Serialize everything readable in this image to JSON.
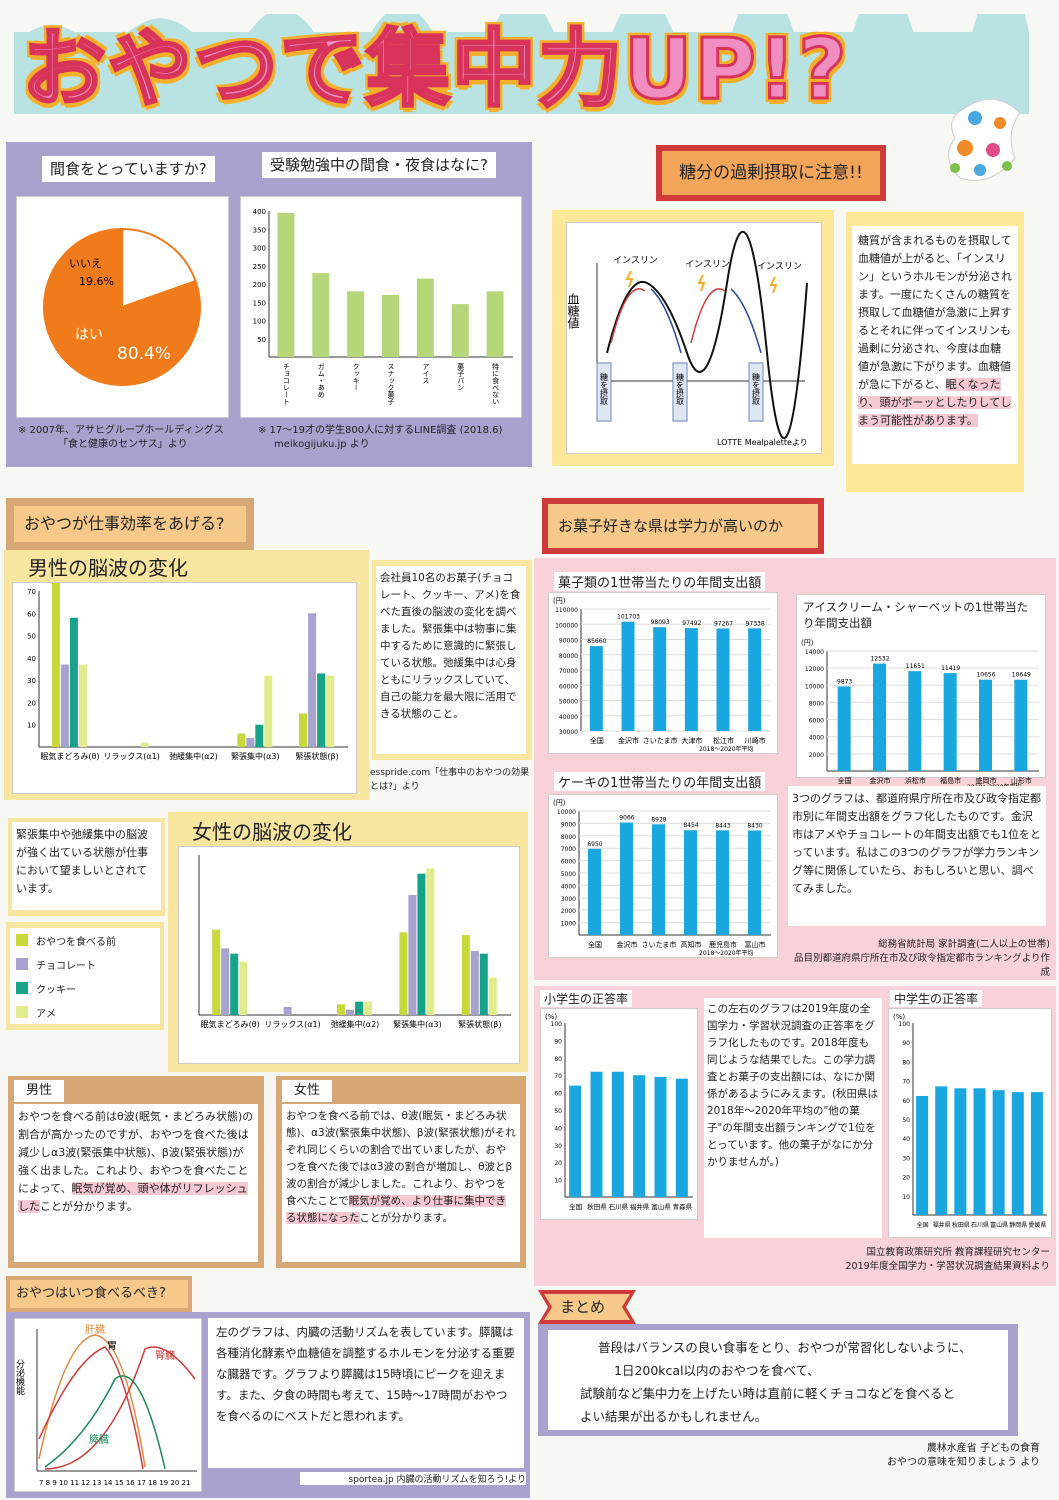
{
  "title": "おやつで集中力UP!?",
  "s1": {
    "pie_title": "間食をとっていますか?",
    "pie_labels": {
      "no": "いいえ",
      "no_pct": "19.6%",
      "yes": "はい",
      "yes_pct": "80.4%"
    },
    "pie_src1": "※ 2007年、アサヒグループホールディングス",
    "pie_src2": "「食と健康のセンサス」より",
    "bar_title": "受験勉強中の間食・夜食はなに?",
    "bar_src1": "※ 17〜19才の学生800人に対するLINE調査 (2018.6)",
    "bar_src2": "meikogijuku.jp より"
  },
  "sugar": {
    "title": "糖分の過剰摂取に注意!!",
    "ylabel": "血糖値",
    "insulin": "インスリン",
    "intake": "糖を摂取",
    "src": "LOTTE  Mealpaletteより",
    "note": "糖質が含まれるものを摂取して血糖値が上がると、「インスリン」というホルモンが分泌されます。一度にたくさんの糖質を摂取して血糖値が急激に上昇するとそれに伴ってインスリンも過剰に分泌され、今度は血糖値が急激に下がります。血糖値が急に下がると、",
    "note_hl": "眠くなったり、頭がボーッとしたりしてしまう可能性があります。"
  },
  "work": {
    "tag": "おやつが仕事効率をあげる?",
    "male_title": "男性の脳波の変化",
    "female_title": "女性の脳波の変化",
    "cats": [
      "眠気まどろみ(θ)",
      "リラックス(α1)",
      "弛緩集中(α2)",
      "緊張集中(α3)",
      "緊張状態(β)"
    ],
    "desc": "会社員10名のお菓子(チョコレート、クッキー、アメ)を食べた直後の脳波の変化を調べました。緊張集中は物事に集中するために意識的に緊張している状態。弛緩集中は心身ともにリラックスしていて、自己の能力を最大限に活用できる状態のこと。",
    "src": "esspride.com「仕事中のおやつの効果とは?」より",
    "good_note": "緊張集中や弛緩集中の脳波が強く出ている状態が仕事において望ましいとされています。",
    "legend": [
      "おやつを食べる前",
      "チョコレート",
      "クッキー",
      "アメ"
    ],
    "legend_colors": [
      "#c6d83a",
      "#a8a2cf",
      "#17a38a",
      "#e2ec8c"
    ],
    "male_tag": "男性",
    "male_text": "おやつを食べる前はθ波(眠気・まどろみ状態)の割合が高かったのですが、おやつを食べた後は減少しα3波(緊張集中状態)、β波(緊張状態)が強く出ました。これより、おやつを食べたことによって、",
    "male_hl": "眠気が覚め、頭や体がリフレッシュした",
    "male_end": "ことが分かります。",
    "female_tag": "女性",
    "female_text": "おやつを食べる前では、θ波(眠気・まどろみ状態)、α3波(緊張集中状態)、β波(緊張状態)がそれぞれ同じくらいの割合で出ていましたが、おやつを食べた後ではα3波の割合が増加し、θ波とβ波の割合が減少しました。これより、おやつを食べたことで",
    "female_hl": "眠気が覚め、より仕事に集中できる状態になった",
    "female_end": "ことが分かります。"
  },
  "sweets": {
    "tag": "お菓子好きな県は学力が高いのか",
    "c1_title": "菓子類の1世帯当たりの年間支出額",
    "c2_title": "アイスクリーム・シャーベットの1世帯当たり年間支出額",
    "c3_title": "ケーキの1世帯当たりの年間支出額",
    "unit": "(円)",
    "period": "2018〜2020年平均",
    "note": "3つのグラフは、都道府県庁所在市及び政令指定都市別に年間支出額をグラフ化したものです。金沢市はアメやチョコレートの年間支出額でも1位をとっています。私はこの3つのグラフが学力ランキング等に関係していたら、おもしろいと思い、調べてみました。",
    "src1": "総務省統計局 家計調査(二人以上の世帯)",
    "src2": "品目別都道府県庁所在市及び政令指定都市ランキングより作成"
  },
  "score": {
    "elem_title": "小学生の正答率",
    "mid_title": "中学生の正答率",
    "unit": "(%)",
    "note": "この左右のグラフは2019年度の全国学力・学習状況調査の正答率をグラフ化したものです。2018年度も同じような結果でした。この学力調査とお菓子の支出額には、なにか関係があるようにみえます。(秋田県は2018年〜2020年平均の\"他の菓子\"の年間支出額ランキングで1位をとっています。他の菓子がなにか分かりませんが。)",
    "src1": "国立教育政策研究所 教育課程研究センター",
    "src2": "2019年度全国学力・学習状況調査結果資料より"
  },
  "when": {
    "tag": "おやつはいつ食べるべき?",
    "ylabel": "分泌機能",
    "organs": {
      "liver": "肝臓",
      "stomach": "胃",
      "kidney": "腎臓",
      "pancreas": "膵臓"
    },
    "xticks": "7 8 9 10 11 12 13 14 15 16 17 18 19 20 21",
    "text": "左のグラフは、内臓の活動リズムを表しています。膵臓は各種消化酵素や血糖値を調整するホルモンを分泌する重要な臓器です。グラフより膵臓は15時頃にピークを迎えます。また、夕食の時間も考えて、15時〜17時間がおやつを食べるのにベストだと思われます。",
    "src": "sportea.jp 内臓の活動リズムを知ろう!より"
  },
  "summary": {
    "tag": "まとめ",
    "text1": "普段はバランスの良い食事をとり、おやつが常習化しないように、",
    "text2": "1日200kcal以内のおやつを食べて、",
    "text3": "試験前など集中力を上げたい時は直前に軽くチョコなどを食べると",
    "text4": "よい結果が出るかもしれません。",
    "src1": "農林水産省 子どもの食育",
    "src2": "おやつの意味を知りましょう より"
  },
  "chart_data": [
    {
      "type": "pie",
      "title": "間食をとっていますか?",
      "categories": [
        "はい",
        "いいえ"
      ],
      "values": [
        80.4,
        19.6
      ]
    },
    {
      "type": "bar",
      "title": "受験勉強中の間食・夜食はなに?",
      "categories": [
        "チョコレート",
        "ガム・あめ",
        "クッキー",
        "スナック菓子",
        "アイス",
        "菓子パン",
        "特に食べない"
      ],
      "values": [
        395,
        230,
        180,
        170,
        215,
        145,
        180
      ],
      "ylim": [
        0,
        400
      ],
      "yticks": [
        50,
        100,
        150,
        200,
        250,
        300,
        350,
        400
      ]
    },
    {
      "type": "bar",
      "title": "男性の脳波の変化",
      "categories": [
        "眠気まどろみ(θ)",
        "リラックス(α1)",
        "弛緩集中(α2)",
        "緊張集中(α3)",
        "緊張状態(β)"
      ],
      "ylim": [
        0,
        70
      ],
      "yticks": [
        10,
        20,
        30,
        40,
        50,
        60,
        70
      ],
      "series": [
        {
          "name": "おやつを食べる前",
          "values": [
            74,
            0,
            0,
            6,
            15
          ]
        },
        {
          "name": "チョコレート",
          "values": [
            37,
            0,
            0,
            4,
            60
          ]
        },
        {
          "name": "クッキー",
          "values": [
            58,
            0,
            0,
            10,
            33
          ]
        },
        {
          "name": "アメ",
          "values": [
            37,
            2,
            0,
            32,
            32
          ]
        }
      ]
    },
    {
      "type": "bar",
      "title": "女性の脳波の変化",
      "categories": [
        "眠気まどろみ(θ)",
        "リラックス(α1)",
        "弛緩集中(α2)",
        "緊張集中(α3)",
        "緊張状態(β)"
      ],
      "ylim": [
        0,
        60
      ],
      "series": [
        {
          "name": "おやつを食べる前",
          "values": [
            32,
            0,
            4,
            31,
            30
          ]
        },
        {
          "name": "チョコレート",
          "values": [
            25,
            3,
            2,
            45,
            24
          ]
        },
        {
          "name": "クッキー",
          "values": [
            23,
            0,
            5,
            53,
            23
          ]
        },
        {
          "name": "アメ",
          "values": [
            20,
            0,
            5,
            55,
            14
          ]
        }
      ]
    },
    {
      "type": "bar",
      "title": "菓子類の1世帯当たりの年間支出額",
      "categories": [
        "全国",
        "金沢市",
        "さいたま市",
        "大津市",
        "松江市",
        "川崎市"
      ],
      "values": [
        85660,
        101703,
        98093,
        97492,
        97267,
        97338
      ],
      "data_labels": [
        "85660",
        "101703",
        "98093",
        "97492",
        "97267",
        "97338"
      ],
      "ylim": [
        30000,
        110000
      ],
      "yticks": [
        30000,
        40000,
        50000,
        60000,
        70000,
        80000,
        90000,
        100000,
        110000
      ]
    },
    {
      "type": "bar",
      "title": "アイスクリーム・シャーベットの1世帯当たり年間支出額",
      "categories": [
        "全国",
        "金沢市",
        "浜松市",
        "福島市",
        "盛岡市",
        "山形市"
      ],
      "values": [
        9873,
        12532,
        11651,
        11419,
        10656,
        10649
      ],
      "data_labels": [
        "9873",
        "12532",
        "11651",
        "11419",
        "10656",
        "10649"
      ],
      "ylim": [
        0,
        14000
      ],
      "yticks": [
        2000,
        4000,
        6000,
        8000,
        10000,
        12000,
        14000
      ]
    },
    {
      "type": "bar",
      "title": "ケーキの1世帯当たりの年間支出額",
      "categories": [
        "全国",
        "金沢市",
        "さいたま市",
        "高知市",
        "鹿児島市",
        "富山市"
      ],
      "values": [
        6950,
        9066,
        8928,
        8454,
        8443,
        8430
      ],
      "data_labels": [
        "6950",
        "9066",
        "8928",
        "8454",
        "8443",
        "8430"
      ],
      "ylim": [
        0,
        10000
      ],
      "yticks": [
        1000,
        2000,
        3000,
        4000,
        5000,
        6000,
        7000,
        8000,
        9000,
        10000
      ]
    },
    {
      "type": "bar",
      "title": "小学生の正答率",
      "categories": [
        "全国",
        "秋田県",
        "石川県",
        "福井県",
        "富山県",
        "青森県"
      ],
      "values": [
        64,
        72,
        72,
        70,
        69,
        68
      ],
      "ylim": [
        0,
        100
      ],
      "yticks": [
        10,
        20,
        30,
        40,
        50,
        60,
        70,
        80,
        90,
        100
      ]
    },
    {
      "type": "bar",
      "title": "中学生の正答率",
      "categories": [
        "全国",
        "福井県",
        "秋田県",
        "石川県",
        "富山県",
        "静岡県",
        "愛媛県"
      ],
      "values": [
        62,
        67,
        66,
        66,
        65,
        64,
        64
      ],
      "ylim": [
        0,
        100
      ],
      "yticks": [
        10,
        20,
        30,
        40,
        50,
        60,
        70,
        80,
        90,
        100
      ]
    }
  ]
}
